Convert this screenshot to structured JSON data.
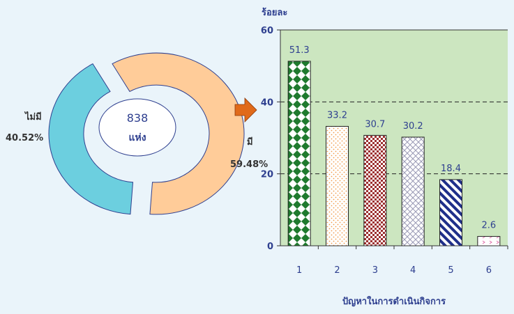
{
  "chart_data": [
    {
      "type": "pie",
      "style": "donut, exploded slices",
      "center_label": {
        "value": "838",
        "unit": "แห่ง"
      },
      "slices": [
        {
          "label": "มี",
          "pct_label": "59.48%",
          "value": 59.48,
          "color": "#ffcc99"
        },
        {
          "label": "ไม่มี",
          "pct_label": "40.52%",
          "value": 40.52,
          "color": "#6ccfdf"
        }
      ]
    },
    {
      "type": "bar",
      "ylabel": "ร้อยละ",
      "xlabel": "ปัญหาในการดำเนินกิจการ",
      "ylim": [
        0,
        60
      ],
      "yticks": [
        "0",
        "20",
        "40",
        "60"
      ],
      "grid": "dashed horizontal at 20 and 40",
      "plot_background": "#cce6c0",
      "categories": [
        "1",
        "2",
        "3",
        "4",
        "5",
        "6"
      ],
      "values": [
        51.3,
        33.2,
        30.7,
        30.2,
        18.4,
        2.6
      ],
      "value_labels": [
        "51.3",
        "33.2",
        "30.7",
        "30.2",
        "18.4",
        "2.6"
      ],
      "bar_patterns": [
        "green-diamonds",
        "orange-dots",
        "red-checks",
        "grey-weave",
        "navy-stripes",
        "pink-arrows"
      ]
    }
  ],
  "arrow": {
    "color": "#e06a1a"
  }
}
